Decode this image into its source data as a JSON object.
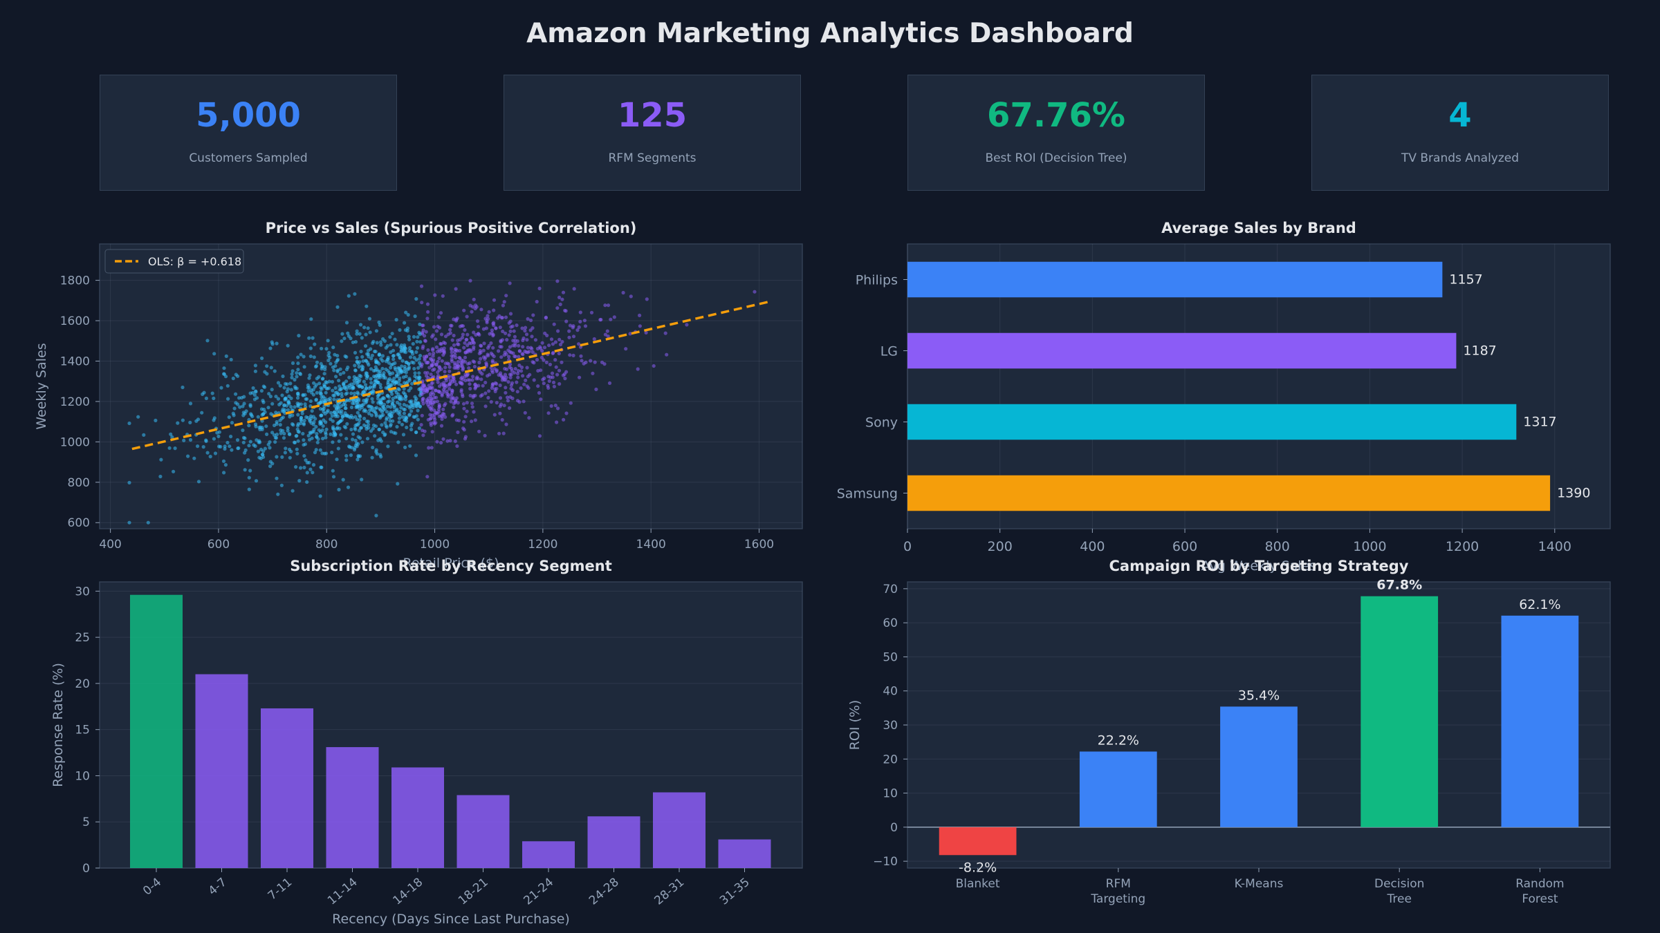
{
  "dashboard": {
    "title": "Amazon Marketing Analytics Dashboard"
  },
  "kpis": [
    {
      "value": "5,000",
      "label": "Customers Sampled",
      "color": "#3b82f6"
    },
    {
      "value": "125",
      "label": "RFM Segments",
      "color": "#8b5cf6"
    },
    {
      "value": "67.76%",
      "label": "Best ROI (Decision Tree)",
      "color": "#10b981"
    },
    {
      "value": "4",
      "label": "TV Brands Analyzed",
      "color": "#06b6d4"
    }
  ],
  "chart_data": [
    {
      "type": "scatter",
      "title": "Price vs Sales (Spurious Positive Correlation)",
      "xlabel": "Retail Price ($)",
      "ylabel": "Weekly Sales",
      "xlim": [
        380,
        1680
      ],
      "ylim": [
        570,
        1980
      ],
      "xticks": [
        400,
        600,
        800,
        1000,
        1200,
        1400,
        1600
      ],
      "yticks": [
        600,
        800,
        1000,
        1200,
        1400,
        1600,
        1800
      ],
      "grid": true,
      "legend": {
        "placement": "top-left",
        "label": "OLS: β = +0.618"
      },
      "trendline": {
        "x": [
          440,
          1620
        ],
        "y": [
          965,
          1695
        ],
        "color": "#f59e0b",
        "style": "dashed"
      },
      "points": {
        "count": 2000,
        "x_mean": 930,
        "x_sd": 170,
        "y_mean": 1275,
        "y_sd": 195,
        "color_low": "#38bdf8",
        "color_high": "#8b5cf6"
      }
    },
    {
      "type": "bar",
      "orientation": "horizontal",
      "title": "Average Sales by Brand",
      "xlabel": "Avg Weekly Sales",
      "categories": [
        "Philips",
        "LG",
        "Sony",
        "Samsung"
      ],
      "values": [
        1157,
        1187,
        1317,
        1390
      ],
      "colors": [
        "#3b82f6",
        "#8b5cf6",
        "#06b6d4",
        "#f59e0b"
      ],
      "xlim": [
        0,
        1520
      ],
      "xticks": [
        0,
        200,
        400,
        600,
        800,
        1000,
        1200,
        1400
      ],
      "grid": true
    },
    {
      "type": "bar",
      "title": "Subscription Rate by Recency Segment",
      "xlabel": "Recency (Days Since Last Purchase)",
      "ylabel": "Response Rate (%)",
      "categories": [
        "0-4",
        "4-7",
        "7-11",
        "11-14",
        "14-18",
        "18-21",
        "21-24",
        "24-28",
        "28-31",
        "31-35"
      ],
      "values": [
        29.6,
        21.0,
        17.3,
        13.1,
        10.9,
        7.9,
        2.9,
        5.6,
        8.2,
        3.1
      ],
      "colors": [
        "#10b981",
        "#8b5cf6",
        "#8b5cf6",
        "#8b5cf6",
        "#8b5cf6",
        "#8b5cf6",
        "#8b5cf6",
        "#8b5cf6",
        "#8b5cf6",
        "#8b5cf6"
      ],
      "ylim": [
        0,
        31
      ],
      "yticks": [
        0,
        5,
        10,
        15,
        20,
        25,
        30
      ],
      "grid": true
    },
    {
      "type": "bar",
      "title": "Campaign ROI by Targeting Strategy",
      "ylabel": "ROI (%)",
      "categories": [
        [
          "Blanket"
        ],
        [
          "RFM",
          "Targeting"
        ],
        [
          "K-Means"
        ],
        [
          "Decision",
          "Tree"
        ],
        [
          "Random",
          "Forest"
        ]
      ],
      "values": [
        -8.2,
        22.2,
        35.4,
        67.8,
        62.1
      ],
      "value_labels": [
        "-8.2%",
        "22.2%",
        "35.4%",
        "67.8%",
        "62.1%"
      ],
      "colors": [
        "#ef4444",
        "#3b82f6",
        "#3b82f6",
        "#10b981",
        "#3b82f6"
      ],
      "ylim": [
        -12,
        72
      ],
      "yticks": [
        -10,
        0,
        10,
        20,
        30,
        40,
        50,
        60,
        70
      ],
      "grid": true
    }
  ]
}
